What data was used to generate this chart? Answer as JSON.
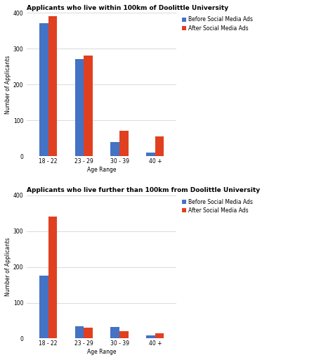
{
  "chart1": {
    "title": "Applicants who live within 100km of Doolittle University",
    "categories": [
      "18 - 22",
      "23 - 29",
      "30 - 39",
      "40 +"
    ],
    "before": [
      370,
      270,
      40,
      10
    ],
    "after": [
      390,
      280,
      70,
      55
    ],
    "ylim": [
      0,
      400
    ],
    "yticks": [
      0,
      100,
      200,
      300,
      400
    ]
  },
  "chart2": {
    "title": "Applicants who live further than 100km from Doolittle University",
    "categories": [
      "18 - 22",
      "23 - 29",
      "30 - 39",
      "40 +"
    ],
    "before": [
      175,
      35,
      32,
      8
    ],
    "after": [
      340,
      30,
      20,
      15
    ],
    "ylim": [
      0,
      400
    ],
    "yticks": [
      0,
      100,
      200,
      300,
      400
    ]
  },
  "color_before": "#4472c4",
  "color_after": "#e04020",
  "legend_before": "Before Social Media Ads",
  "legend_after": "After Social Media Ads",
  "xlabel": "Age Range",
  "ylabel": "Number of Applicants",
  "bar_width": 0.25,
  "title_fontsize": 6.5,
  "axis_fontsize": 5.5,
  "tick_fontsize": 5.5,
  "legend_fontsize": 5.5,
  "bg_color": "#ffffff",
  "grid_color": "#cccccc"
}
